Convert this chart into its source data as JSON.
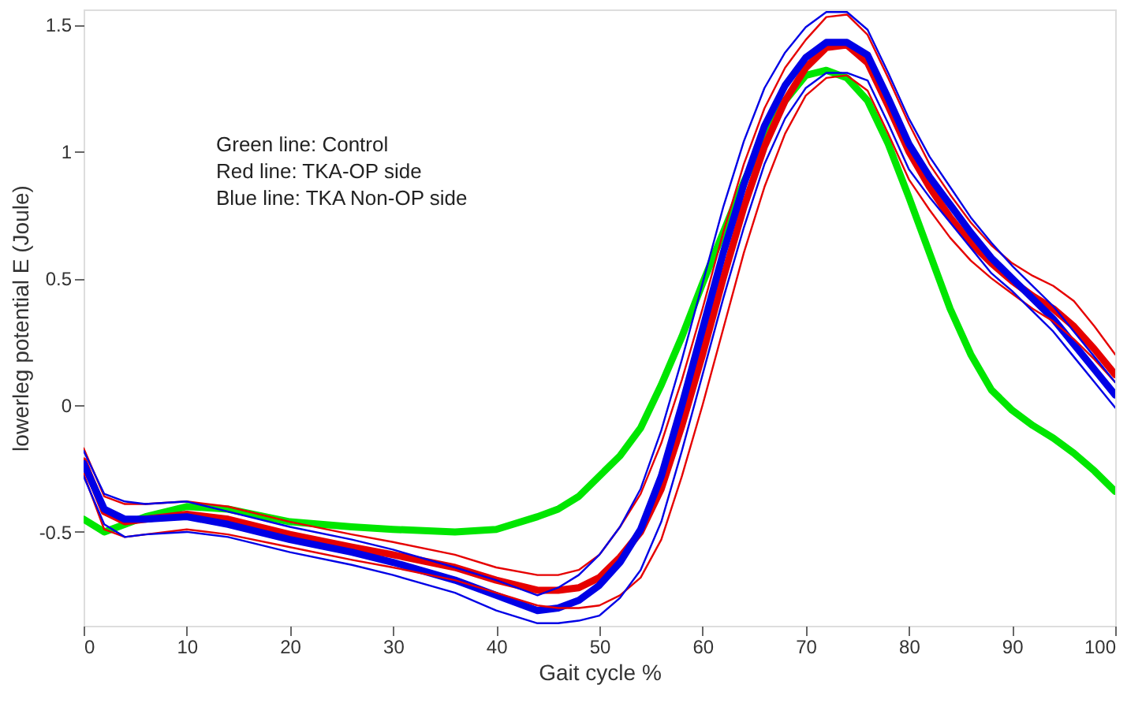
{
  "chart_data": {
    "type": "line",
    "xlabel": "Gait cycle %",
    "ylabel": "lowerleg potential E (Joule)",
    "annotations": [
      "Green line: Control",
      "Red line: TKA-OP side",
      "Blue line: TKA Non-OP side"
    ],
    "x": [
      0,
      2,
      4,
      6,
      10,
      14,
      20,
      26,
      30,
      36,
      40,
      44,
      46,
      48,
      50,
      52,
      54,
      56,
      58,
      60,
      62,
      64,
      66,
      68,
      70,
      72,
      74,
      76,
      78,
      80,
      82,
      84,
      86,
      88,
      90,
      92,
      94,
      96,
      98,
      100
    ],
    "xlim": [
      0,
      100
    ],
    "xticks": [
      0,
      10,
      20,
      30,
      40,
      50,
      60,
      70,
      80,
      90,
      100
    ],
    "ylim": [
      -0.87,
      1.56
    ],
    "yticks": [
      -0.5,
      0,
      0.5,
      1,
      1.5
    ],
    "grid": false,
    "marker": "none",
    "line_style": "solid",
    "series": [
      {
        "color": "#00e600",
        "values": [
          -0.45,
          -0.5,
          -0.47,
          -0.44,
          -0.4,
          -0.41,
          -0.46,
          -0.48,
          -0.49,
          -0.5,
          -0.49,
          -0.44,
          -0.41,
          -0.36,
          -0.28,
          -0.2,
          -0.09,
          0.08,
          0.27,
          0.48,
          0.68,
          0.88,
          1.05,
          1.2,
          1.3,
          1.32,
          1.29,
          1.2,
          1.03,
          0.82,
          0.6,
          0.38,
          0.2,
          0.06,
          -0.02,
          -0.08,
          -0.13,
          -0.19,
          -0.26,
          -0.34
        ]
      },
      {
        "color": "#e60000",
        "values": [
          -0.22,
          -0.42,
          -0.46,
          -0.45,
          -0.43,
          -0.45,
          -0.51,
          -0.56,
          -0.59,
          -0.64,
          -0.69,
          -0.73,
          -0.73,
          -0.72,
          -0.68,
          -0.6,
          -0.5,
          -0.33,
          -0.08,
          0.2,
          0.5,
          0.78,
          1.02,
          1.2,
          1.33,
          1.41,
          1.42,
          1.35,
          1.18,
          1.0,
          0.86,
          0.74,
          0.64,
          0.56,
          0.49,
          0.43,
          0.38,
          0.31,
          0.22,
          0.12
        ]
      },
      {
        "color": "#0000e6",
        "values": [
          -0.23,
          -0.41,
          -0.45,
          -0.45,
          -0.44,
          -0.47,
          -0.53,
          -0.58,
          -0.62,
          -0.69,
          -0.75,
          -0.81,
          -0.8,
          -0.77,
          -0.71,
          -0.62,
          -0.49,
          -0.28,
          0.0,
          0.3,
          0.6,
          0.87,
          1.1,
          1.26,
          1.37,
          1.43,
          1.43,
          1.38,
          1.21,
          1.03,
          0.9,
          0.79,
          0.68,
          0.58,
          0.5,
          0.42,
          0.34,
          0.24,
          0.14,
          0.04
        ]
      },
      {
        "color": "#e60000",
        "values": [
          -0.27,
          -0.49,
          -0.52,
          -0.51,
          -0.49,
          -0.51,
          -0.56,
          -0.61,
          -0.64,
          -0.69,
          -0.74,
          -0.79,
          -0.8,
          -0.8,
          -0.79,
          -0.75,
          -0.68,
          -0.53,
          -0.28,
          0.0,
          0.3,
          0.6,
          0.86,
          1.07,
          1.22,
          1.29,
          1.3,
          1.24,
          1.07,
          0.89,
          0.77,
          0.66,
          0.57,
          0.5,
          0.44,
          0.38,
          0.33,
          0.26,
          0.18,
          0.09
        ]
      },
      {
        "color": "#e60000",
        "values": [
          -0.17,
          -0.36,
          -0.39,
          -0.39,
          -0.38,
          -0.4,
          -0.46,
          -0.51,
          -0.54,
          -0.59,
          -0.64,
          -0.67,
          -0.67,
          -0.65,
          -0.59,
          -0.48,
          -0.35,
          -0.15,
          0.1,
          0.38,
          0.68,
          0.95,
          1.17,
          1.33,
          1.44,
          1.53,
          1.54,
          1.46,
          1.29,
          1.11,
          0.95,
          0.83,
          0.72,
          0.63,
          0.56,
          0.51,
          0.47,
          0.41,
          0.31,
          0.2
        ]
      },
      {
        "color": "#0000e6",
        "values": [
          -0.28,
          -0.47,
          -0.52,
          -0.51,
          -0.5,
          -0.52,
          -0.58,
          -0.63,
          -0.67,
          -0.74,
          -0.81,
          -0.86,
          -0.86,
          -0.85,
          -0.83,
          -0.76,
          -0.65,
          -0.46,
          -0.18,
          0.12,
          0.42,
          0.7,
          0.95,
          1.13,
          1.25,
          1.31,
          1.31,
          1.28,
          1.11,
          0.93,
          0.82,
          0.72,
          0.62,
          0.52,
          0.45,
          0.37,
          0.29,
          0.19,
          0.09,
          -0.01
        ]
      },
      {
        "color": "#0000e6",
        "values": [
          -0.18,
          -0.35,
          -0.38,
          -0.39,
          -0.38,
          -0.42,
          -0.48,
          -0.53,
          -0.57,
          -0.64,
          -0.69,
          -0.75,
          -0.72,
          -0.67,
          -0.59,
          -0.48,
          -0.33,
          -0.1,
          0.18,
          0.48,
          0.78,
          1.04,
          1.25,
          1.39,
          1.49,
          1.55,
          1.55,
          1.48,
          1.31,
          1.13,
          0.98,
          0.86,
          0.74,
          0.64,
          0.55,
          0.47,
          0.39,
          0.29,
          0.19,
          0.09
        ]
      }
    ]
  }
}
